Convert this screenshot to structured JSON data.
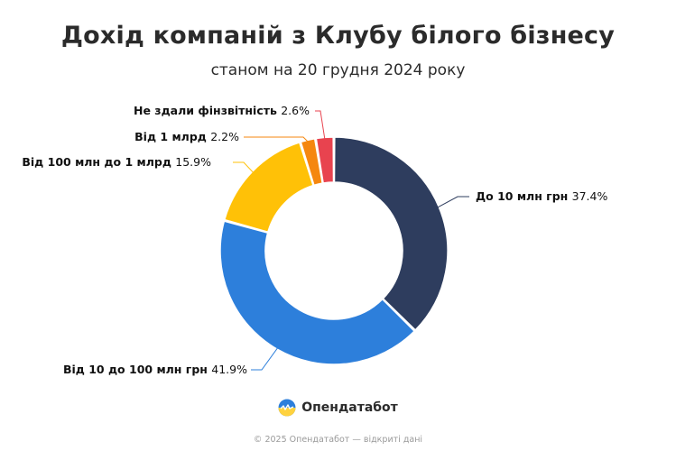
{
  "header": {
    "title": "Дохід компаній з Клубу білого бізнесу",
    "subtitle": "станом на 20 грудня 2024 року"
  },
  "brand": {
    "name": "Опендатабот",
    "logo_icon": "opendatabot-logo-icon"
  },
  "footer": {
    "text": "© 2025 Опендатабот — відкриті дані"
  },
  "chart_data": {
    "type": "pie",
    "variant": "donut",
    "title": "Дохід компаній з Клубу білого бізнесу",
    "subtitle": "станом на 20 грудня 2024 року",
    "unit": "%",
    "slices": [
      {
        "label": "До 10 млн грн",
        "value": 37.4,
        "value_label": "37.4%",
        "color": "#2e3d5e"
      },
      {
        "label": "Від 10 до 100 млн грн",
        "value": 41.9,
        "value_label": "41.9%",
        "color": "#2d7fdb"
      },
      {
        "label": "Від 100 млн до 1 млрд",
        "value": 15.9,
        "value_label": "15.9%",
        "color": "#ffc107"
      },
      {
        "label": "Від 1 млрд",
        "value": 2.2,
        "value_label": "2.2%",
        "color": "#f5870f"
      },
      {
        "label": "Не здали фінзвітність",
        "value": 2.6,
        "value_label": "2.6%",
        "color": "#e8434f"
      }
    ]
  }
}
